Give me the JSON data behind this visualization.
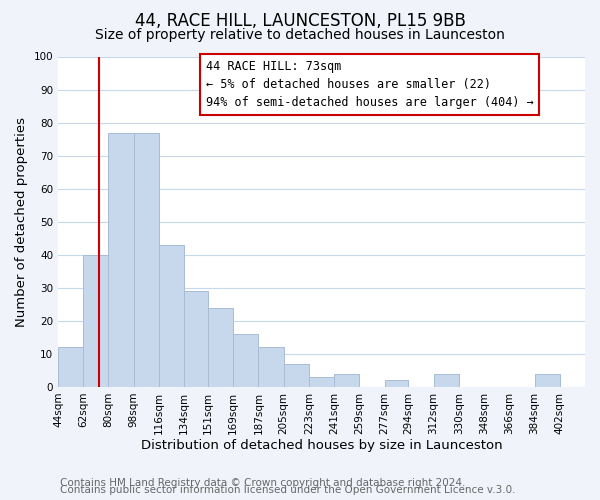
{
  "title": "44, RACE HILL, LAUNCESTON, PL15 9BB",
  "subtitle": "Size of property relative to detached houses in Launceston",
  "xlabel": "Distribution of detached houses by size in Launceston",
  "ylabel": "Number of detached properties",
  "footer_line1": "Contains HM Land Registry data © Crown copyright and database right 2024.",
  "footer_line2": "Contains public sector information licensed under the Open Government Licence v.3.0.",
  "bar_left_edges": [
    44,
    62,
    80,
    98,
    116,
    134,
    151,
    169,
    187,
    205,
    223,
    241,
    259,
    277,
    294,
    312,
    330,
    348,
    366,
    384
  ],
  "bar_heights": [
    12,
    40,
    77,
    77,
    43,
    29,
    24,
    16,
    12,
    7,
    3,
    4,
    0,
    2,
    0,
    4,
    0,
    0,
    0,
    4
  ],
  "bar_widths": [
    18,
    18,
    18,
    18,
    18,
    17,
    18,
    18,
    18,
    18,
    18,
    18,
    18,
    17,
    18,
    18,
    18,
    18,
    18,
    18
  ],
  "bar_color": "#c8d8ec",
  "bar_edge_color": "#a8bcd4",
  "xlim": [
    44,
    420
  ],
  "ylim": [
    0,
    100
  ],
  "yticks": [
    0,
    10,
    20,
    30,
    40,
    50,
    60,
    70,
    80,
    90,
    100
  ],
  "xtick_labels": [
    "44sqm",
    "62sqm",
    "80sqm",
    "98sqm",
    "116sqm",
    "134sqm",
    "151sqm",
    "169sqm",
    "187sqm",
    "205sqm",
    "223sqm",
    "241sqm",
    "259sqm",
    "277sqm",
    "294sqm",
    "312sqm",
    "330sqm",
    "348sqm",
    "366sqm",
    "384sqm",
    "402sqm"
  ],
  "xtick_positions": [
    44,
    62,
    80,
    98,
    116,
    134,
    151,
    169,
    187,
    205,
    223,
    241,
    259,
    277,
    294,
    312,
    330,
    348,
    366,
    384,
    402
  ],
  "red_line_x": 73,
  "annotation_title": "44 RACE HILL: 73sqm",
  "annotation_line1": "← 5% of detached houses are smaller (22)",
  "annotation_line2": "94% of semi-detached houses are larger (404) →",
  "annotation_box_color": "#ffffff",
  "annotation_box_edge_color": "#cc0000",
  "red_line_color": "#cc0000",
  "grid_color": "#c8d8ec",
  "plot_bg_color": "#ffffff",
  "fig_bg_color": "#f0f4fa",
  "title_fontsize": 12,
  "subtitle_fontsize": 10,
  "axis_label_fontsize": 9.5,
  "tick_fontsize": 7.5,
  "footer_fontsize": 7.5,
  "annotation_fontsize": 8.5
}
